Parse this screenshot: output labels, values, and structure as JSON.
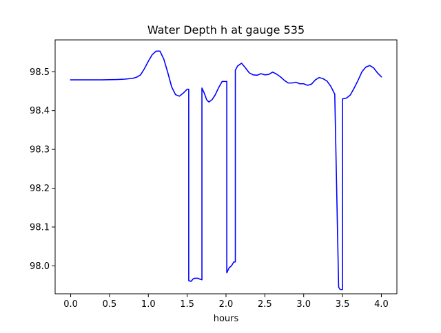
{
  "chart_data": {
    "type": "line",
    "title": "Water Depth h at gauge 535",
    "xlabel": "hours",
    "ylabel": "",
    "xlim": [
      -0.2,
      4.2
    ],
    "ylim": [
      97.928,
      98.582
    ],
    "xticks": [
      0.0,
      0.5,
      1.0,
      1.5,
      2.0,
      2.5,
      3.0,
      3.5,
      4.0
    ],
    "xtick_labels": [
      "0.0",
      "0.5",
      "1.0",
      "1.5",
      "2.0",
      "2.5",
      "3.0",
      "3.5",
      "4.0"
    ],
    "yticks": [
      98.0,
      98.1,
      98.2,
      98.3,
      98.4,
      98.5
    ],
    "ytick_labels": [
      "98.0",
      "98.1",
      "98.2",
      "98.3",
      "98.4",
      "98.5"
    ],
    "grid": false,
    "series": [
      {
        "color": "#0000ff",
        "x": [
          0.0,
          0.2,
          0.4,
          0.6,
          0.7,
          0.8,
          0.85,
          0.9,
          0.95,
          1.0,
          1.05,
          1.1,
          1.15,
          1.2,
          1.25,
          1.3,
          1.35,
          1.4,
          1.45,
          1.5,
          1.52,
          1.52,
          1.55,
          1.58,
          1.6,
          1.64,
          1.67,
          1.68,
          1.69,
          1.69,
          1.72,
          1.75,
          1.78,
          1.82,
          1.86,
          1.9,
          1.95,
          2.0,
          2.01,
          2.01,
          2.04,
          2.07,
          2.1,
          2.12,
          2.12,
          2.15,
          2.2,
          2.25,
          2.3,
          2.35,
          2.4,
          2.45,
          2.5,
          2.55,
          2.6,
          2.65,
          2.7,
          2.75,
          2.8,
          2.85,
          2.9,
          2.95,
          3.0,
          3.05,
          3.1,
          3.15,
          3.2,
          3.25,
          3.3,
          3.35,
          3.4,
          3.45,
          3.47,
          3.47,
          3.5,
          3.5,
          3.55,
          3.6,
          3.65,
          3.7,
          3.75,
          3.8,
          3.85,
          3.9,
          3.95,
          4.0
        ],
        "y": [
          98.479,
          98.479,
          98.479,
          98.48,
          98.481,
          98.483,
          98.486,
          98.492,
          98.508,
          98.527,
          98.544,
          98.553,
          98.553,
          98.532,
          98.498,
          98.461,
          98.441,
          98.437,
          98.445,
          98.455,
          98.455,
          97.962,
          97.96,
          97.967,
          97.968,
          97.968,
          97.965,
          97.965,
          97.964,
          98.458,
          98.445,
          98.428,
          98.422,
          98.428,
          98.44,
          98.457,
          98.475,
          98.475,
          98.475,
          97.982,
          97.995,
          98.0,
          98.01,
          98.01,
          98.504,
          98.515,
          98.522,
          98.51,
          98.497,
          98.492,
          98.491,
          98.495,
          98.492,
          98.493,
          98.499,
          98.494,
          98.487,
          98.478,
          98.471,
          98.471,
          98.473,
          98.469,
          98.469,
          98.465,
          98.468,
          98.479,
          98.485,
          98.482,
          98.476,
          98.462,
          98.442,
          97.945,
          97.939,
          97.939,
          97.939,
          98.43,
          98.432,
          98.44,
          98.458,
          98.478,
          98.5,
          98.512,
          98.516,
          98.51,
          98.497,
          98.487
        ]
      }
    ]
  }
}
